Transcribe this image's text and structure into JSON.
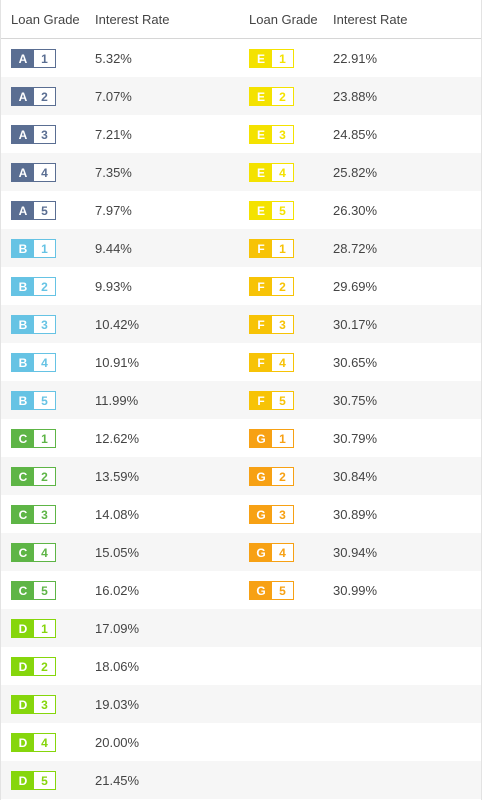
{
  "header": {
    "col1": "Loan Grade",
    "col2": "Interest Rate",
    "col3": "Loan Grade",
    "col4": "Interest Rate"
  },
  "colors": {
    "A": "#5a6e92",
    "B": "#66c3e4",
    "C": "#5eb546",
    "D": "#86d60c",
    "E": "#f4e200",
    "F": "#f7c306",
    "G": "#f7a114"
  },
  "left": [
    {
      "letter": "A",
      "number": "1",
      "rate": "5.32%"
    },
    {
      "letter": "A",
      "number": "2",
      "rate": "7.07%"
    },
    {
      "letter": "A",
      "number": "3",
      "rate": "7.21%"
    },
    {
      "letter": "A",
      "number": "4",
      "rate": "7.35%"
    },
    {
      "letter": "A",
      "number": "5",
      "rate": "7.97%"
    },
    {
      "letter": "B",
      "number": "1",
      "rate": "9.44%"
    },
    {
      "letter": "B",
      "number": "2",
      "rate": "9.93%"
    },
    {
      "letter": "B",
      "number": "3",
      "rate": "10.42%"
    },
    {
      "letter": "B",
      "number": "4",
      "rate": "10.91%"
    },
    {
      "letter": "B",
      "number": "5",
      "rate": "11.99%"
    },
    {
      "letter": "C",
      "number": "1",
      "rate": "12.62%"
    },
    {
      "letter": "C",
      "number": "2",
      "rate": "13.59%"
    },
    {
      "letter": "C",
      "number": "3",
      "rate": "14.08%"
    },
    {
      "letter": "C",
      "number": "4",
      "rate": "15.05%"
    },
    {
      "letter": "C",
      "number": "5",
      "rate": "16.02%"
    },
    {
      "letter": "D",
      "number": "1",
      "rate": "17.09%"
    },
    {
      "letter": "D",
      "number": "2",
      "rate": "18.06%"
    },
    {
      "letter": "D",
      "number": "3",
      "rate": "19.03%"
    },
    {
      "letter": "D",
      "number": "4",
      "rate": "20.00%"
    },
    {
      "letter": "D",
      "number": "5",
      "rate": "21.45%"
    }
  ],
  "right": [
    {
      "letter": "E",
      "number": "1",
      "rate": "22.91%"
    },
    {
      "letter": "E",
      "number": "2",
      "rate": "23.88%"
    },
    {
      "letter": "E",
      "number": "3",
      "rate": "24.85%"
    },
    {
      "letter": "E",
      "number": "4",
      "rate": "25.82%"
    },
    {
      "letter": "E",
      "number": "5",
      "rate": "26.30%"
    },
    {
      "letter": "F",
      "number": "1",
      "rate": "28.72%"
    },
    {
      "letter": "F",
      "number": "2",
      "rate": "29.69%"
    },
    {
      "letter": "F",
      "number": "3",
      "rate": "30.17%"
    },
    {
      "letter": "F",
      "number": "4",
      "rate": "30.65%"
    },
    {
      "letter": "F",
      "number": "5",
      "rate": "30.75%"
    },
    {
      "letter": "G",
      "number": "1",
      "rate": "30.79%"
    },
    {
      "letter": "G",
      "number": "2",
      "rate": "30.84%"
    },
    {
      "letter": "G",
      "number": "3",
      "rate": "30.89%"
    },
    {
      "letter": "G",
      "number": "4",
      "rate": "30.94%"
    },
    {
      "letter": "G",
      "number": "5",
      "rate": "30.99%"
    }
  ]
}
